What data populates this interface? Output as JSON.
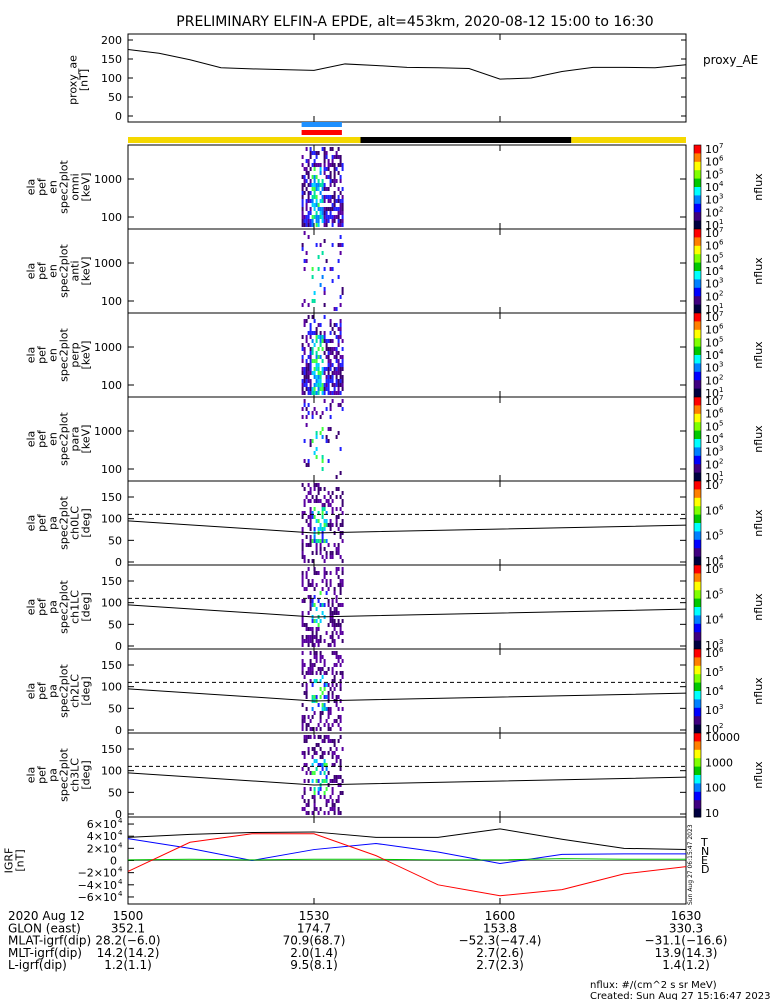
{
  "title": "PRELIMINARY ELFIN-A EPDE, alt=453km, 2020-08-12 15:00 to 16:30",
  "colors": {
    "sat_yellow": "#f5d800",
    "sat_black": "#000000",
    "bar_blue": "#1e90ff",
    "bar_red": "#ff0000"
  },
  "panels": {
    "proxy_ae": {
      "ytitle": [
        "proxy_ae",
        "[nT]"
      ],
      "legend": "proxy_AE",
      "yticks": [
        "0",
        "50",
        "100",
        "150",
        "200"
      ]
    },
    "spec": [
      {
        "ytitle": [
          "ela",
          "pef",
          "en",
          "spec2plot",
          "omni",
          "[keV]"
        ],
        "yticks": [
          "100",
          "1000"
        ],
        "cticks": [
          "10",
          "10",
          "10",
          "10",
          "10",
          "10",
          "10"
        ],
        "cexp": [
          "1",
          "2",
          "3",
          "4",
          "5",
          "6",
          "7"
        ],
        "clabel": "nflux"
      },
      {
        "ytitle": [
          "ela",
          "pef",
          "en",
          "spec2plot",
          "anti",
          "[keV]"
        ],
        "yticks": [
          "100",
          "1000"
        ],
        "cticks": [
          "10",
          "10",
          "10",
          "10",
          "10",
          "10",
          "10"
        ],
        "cexp": [
          "1",
          "2",
          "3",
          "4",
          "5",
          "6",
          "7"
        ],
        "clabel": "nflux"
      },
      {
        "ytitle": [
          "ela",
          "pef",
          "en",
          "spec2plot",
          "perp",
          "[keV]"
        ],
        "yticks": [
          "100",
          "1000"
        ],
        "cticks": [
          "10",
          "10",
          "10",
          "10",
          "10",
          "10",
          "10"
        ],
        "cexp": [
          "1",
          "2",
          "3",
          "4",
          "5",
          "6",
          "7"
        ],
        "clabel": "nflux"
      },
      {
        "ytitle": [
          "ela",
          "pef",
          "en",
          "spec2plot",
          "para",
          "[keV]"
        ],
        "yticks": [
          "100",
          "1000"
        ],
        "cticks": [
          "10",
          "10",
          "10",
          "10",
          "10",
          "10",
          "10"
        ],
        "cexp": [
          "1",
          "2",
          "3",
          "4",
          "5",
          "6",
          "7"
        ],
        "clabel": "nflux"
      }
    ],
    "pa": [
      {
        "ytitle": [
          "ela",
          "pef",
          "pa",
          "spec2plot",
          "ch0LC",
          "[deg]"
        ],
        "yticks": [
          "0",
          "50",
          "100",
          "150"
        ],
        "cticks": [
          "10",
          "10",
          "10",
          "10"
        ],
        "cexp": [
          "4",
          "5",
          "6",
          "7"
        ],
        "clabel": "nflux"
      },
      {
        "ytitle": [
          "ela",
          "pef",
          "pa",
          "spec2plot",
          "ch1LC",
          "[deg]"
        ],
        "yticks": [
          "0",
          "50",
          "100",
          "150"
        ],
        "cticks": [
          "10",
          "10",
          "10",
          "10"
        ],
        "cexp": [
          "3",
          "4",
          "5",
          "6"
        ],
        "clabel": "nflux"
      },
      {
        "ytitle": [
          "ela",
          "pef",
          "pa",
          "spec2plot",
          "ch2LC",
          "[deg]"
        ],
        "yticks": [
          "0",
          "50",
          "100",
          "150"
        ],
        "cticks": [
          "10",
          "10",
          "10",
          "10",
          "10"
        ],
        "cexp": [
          "2",
          "3",
          "4",
          "5",
          "6"
        ],
        "clabel": "nflux"
      },
      {
        "ytitle": [
          "ela",
          "pef",
          "pa",
          "spec2plot",
          "ch3LC",
          "[deg]"
        ],
        "yticks": [
          "0",
          "50",
          "100",
          "150"
        ],
        "cticks": [
          "10",
          "100",
          "1000",
          "10000"
        ],
        "cexp": [
          "",
          "",
          "",
          ""
        ],
        "clabel": "nflux"
      }
    ],
    "igrf": {
      "ytitle": [
        "IGRF",
        "[nT]"
      ],
      "yticks": [
        "−6×10",
        "−4×10",
        "−2×10",
        "0",
        "2×10",
        "4×10",
        "6×10"
      ],
      "yexp": [
        "4",
        "4",
        "4",
        "",
        "4",
        "4",
        "4"
      ],
      "legend": [
        "T",
        "N",
        "E",
        "D"
      ],
      "legend_colors": [
        "#000000",
        "#0000ff",
        "#00c000",
        "#ff0000"
      ],
      "side_note": [
        "Sun Aug 27 06:15:47 2023",
        "Sun Aug 27 06:15:47 2023"
      ]
    }
  },
  "xaxis": {
    "ticks": [
      "1500",
      "1530",
      "1600",
      "1630"
    ],
    "rows": [
      {
        "label": "2020 Aug 12",
        "values": [
          "1500",
          "1530",
          "1600",
          "1630"
        ]
      },
      {
        "label": "GLON (east)",
        "values": [
          "352.1",
          "174.7",
          "153.8",
          "330.3"
        ]
      },
      {
        "label": "MLAT-igrf(dip)",
        "values": [
          "28.2(−6.0)",
          "70.9(68.7)",
          "−52.3(−47.4)",
          "−31.1(−16.6)"
        ]
      },
      {
        "label": "MLT-igrf(dip)",
        "values": [
          "14.2(14.2)",
          "2.0(1.4)",
          "2.7(2.6)",
          "13.9(14.3)"
        ]
      },
      {
        "label": "L-igrf(dip)",
        "values": [
          "1.2(1.1)",
          "9.5(8.1)",
          "2.7(2.3)",
          "1.4(1.2)"
        ]
      }
    ]
  },
  "footer": [
    "nflux: #/(cm^2 s sr MeV)",
    "Created: Sun Aug 27 15:16:47 2023"
  ],
  "chart_data": {
    "type": "line",
    "x_range_hhmm": [
      "15:00",
      "16:30"
    ],
    "proxy_ae": {
      "ylim": [
        0,
        200
      ],
      "t_min": [
        0,
        5,
        10,
        15,
        20,
        25,
        30,
        35,
        40,
        45,
        50,
        55,
        60,
        65,
        70,
        75,
        80,
        85,
        90
      ],
      "values": [
        175,
        165,
        148,
        127,
        124,
        122,
        120,
        137,
        133,
        128,
        127,
        125,
        97,
        100,
        117,
        128,
        128,
        127,
        135
      ]
    },
    "satellite_bar": [
      {
        "t0": 0,
        "t1": 37.5,
        "color": "yellow"
      },
      {
        "t0": 37.5,
        "t1": 71.5,
        "color": "black"
      },
      {
        "t0": 71.5,
        "t1": 90,
        "color": "yellow"
      }
    ],
    "science_zones": [
      {
        "t0": 28.0,
        "t1": 34.5,
        "color": "blue"
      },
      {
        "t0": 28.0,
        "t1": 34.5,
        "color": "red"
      }
    ],
    "loss_cone_deg": {
      "t_min": [
        0,
        30,
        90
      ],
      "values": [
        95,
        67,
        85
      ]
    },
    "anti_loss_cone_deg": 110,
    "igrf": {
      "ylim": [
        -65000,
        65000
      ],
      "t_min": [
        0,
        10,
        20,
        30,
        40,
        50,
        60,
        70,
        80,
        90
      ],
      "series": [
        {
          "name": "T",
          "values": [
            38000,
            43000,
            46000,
            47000,
            38000,
            38000,
            52000,
            35000,
            20000,
            18000
          ]
        },
        {
          "name": "N",
          "values": [
            36000,
            20000,
            0,
            18000,
            28000,
            14000,
            -5000,
            10000,
            11000,
            11000
          ]
        },
        {
          "name": "E",
          "values": [
            1000,
            2000,
            1000,
            2000,
            2000,
            1000,
            1000,
            3000,
            2000,
            2000
          ]
        },
        {
          "name": "D",
          "values": [
            -18000,
            30000,
            44000,
            44000,
            8000,
            -40000,
            -58000,
            -48000,
            -22000,
            -10000
          ]
        }
      ]
    }
  }
}
